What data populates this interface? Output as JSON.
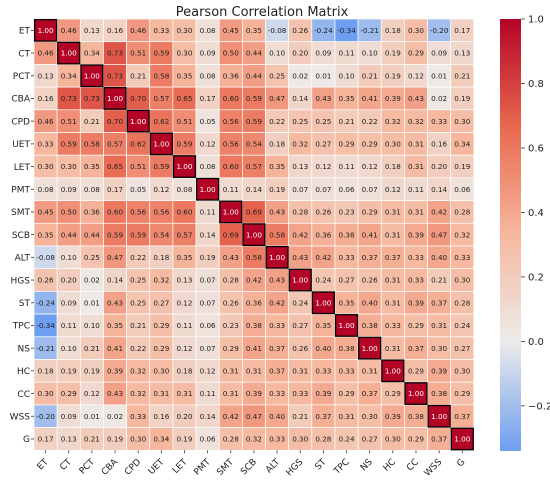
{
  "chart_data": {
    "type": "heatmap",
    "title": "Pearson Correlation Matrix",
    "labels": [
      "ET",
      "CT",
      "PCT",
      "CBA",
      "CPD",
      "UET",
      "LET",
      "PMT",
      "SMT",
      "SCB",
      "ALT",
      "HGS",
      "ST",
      "TPC",
      "NS",
      "HC",
      "CC",
      "WSS",
      "G"
    ],
    "matrix": [
      [
        1.0,
        0.46,
        0.13,
        0.16,
        0.46,
        0.33,
        0.3,
        0.08,
        0.45,
        0.35,
        -0.08,
        0.26,
        -0.24,
        -0.34,
        -0.21,
        0.18,
        0.3,
        -0.2,
        0.17
      ],
      [
        0.46,
        1.0,
        0.34,
        0.73,
        0.51,
        0.59,
        0.3,
        0.09,
        0.5,
        0.44,
        0.1,
        0.2,
        0.09,
        0.11,
        0.1,
        0.19,
        0.29,
        0.09,
        0.13
      ],
      [
        0.13,
        0.34,
        1.0,
        0.73,
        0.21,
        0.58,
        0.35,
        0.08,
        0.36,
        0.44,
        0.25,
        0.02,
        0.01,
        0.1,
        0.21,
        0.19,
        0.12,
        0.01,
        0.21
      ],
      [
        0.16,
        0.73,
        0.73,
        1.0,
        0.7,
        0.57,
        0.65,
        0.17,
        0.6,
        0.59,
        0.47,
        0.14,
        0.43,
        0.35,
        0.41,
        0.39,
        0.43,
        0.02,
        0.19
      ],
      [
        0.46,
        0.51,
        0.21,
        0.7,
        1.0,
        0.62,
        0.51,
        0.05,
        0.56,
        0.59,
        0.22,
        0.25,
        0.25,
        0.21,
        0.22,
        0.32,
        0.32,
        0.33,
        0.3
      ],
      [
        0.33,
        0.59,
        0.58,
        0.57,
        0.62,
        1.0,
        0.59,
        0.12,
        0.56,
        0.54,
        0.18,
        0.32,
        0.27,
        0.29,
        0.29,
        0.3,
        0.31,
        0.16,
        0.34
      ],
      [
        0.3,
        0.3,
        0.35,
        0.65,
        0.51,
        0.59,
        1.0,
        0.08,
        0.6,
        0.57,
        0.35,
        0.13,
        0.12,
        0.11,
        0.12,
        0.18,
        0.31,
        0.2,
        0.19
      ],
      [
        0.08,
        0.09,
        0.08,
        0.17,
        0.05,
        0.12,
        0.08,
        1.0,
        0.11,
        0.14,
        0.19,
        0.07,
        0.07,
        0.06,
        0.07,
        0.12,
        0.11,
        0.14,
        0.06
      ],
      [
        0.45,
        0.5,
        0.36,
        0.6,
        0.56,
        0.56,
        0.6,
        0.11,
        1.0,
        0.69,
        0.43,
        0.28,
        0.26,
        0.23,
        0.29,
        0.31,
        0.31,
        0.42,
        0.28
      ],
      [
        0.35,
        0.44,
        0.44,
        0.59,
        0.59,
        0.54,
        0.57,
        0.14,
        0.69,
        1.0,
        0.58,
        0.42,
        0.36,
        0.38,
        0.41,
        0.31,
        0.39,
        0.47,
        0.32
      ],
      [
        -0.08,
        0.1,
        0.25,
        0.47,
        0.22,
        0.18,
        0.35,
        0.19,
        0.43,
        0.58,
        1.0,
        0.43,
        0.42,
        0.33,
        0.37,
        0.37,
        0.33,
        0.4,
        0.33
      ],
      [
        0.26,
        0.2,
        0.02,
        0.14,
        0.25,
        0.32,
        0.13,
        0.07,
        0.28,
        0.42,
        0.43,
        1.0,
        0.24,
        0.27,
        0.26,
        0.31,
        0.33,
        0.21,
        0.3
      ],
      [
        -0.24,
        0.09,
        0.01,
        0.43,
        0.25,
        0.27,
        0.12,
        0.07,
        0.26,
        0.36,
        0.42,
        0.24,
        1.0,
        0.35,
        0.4,
        0.31,
        0.39,
        0.37,
        0.28
      ],
      [
        -0.34,
        0.11,
        0.1,
        0.35,
        0.21,
        0.29,
        0.11,
        0.06,
        0.23,
        0.38,
        0.33,
        0.27,
        0.35,
        1.0,
        0.38,
        0.33,
        0.29,
        0.31,
        0.24
      ],
      [
        -0.21,
        0.1,
        0.21,
        0.41,
        0.22,
        0.29,
        0.12,
        0.07,
        0.29,
        0.41,
        0.37,
        0.26,
        0.4,
        0.38,
        1.0,
        0.31,
        0.37,
        0.3,
        0.27
      ],
      [
        0.18,
        0.19,
        0.19,
        0.39,
        0.32,
        0.3,
        0.18,
        0.12,
        0.31,
        0.31,
        0.37,
        0.31,
        0.33,
        0.33,
        0.31,
        1.0,
        0.29,
        0.39,
        0.3
      ],
      [
        0.3,
        0.29,
        0.12,
        0.43,
        0.32,
        0.31,
        0.31,
        0.11,
        0.31,
        0.39,
        0.33,
        0.33,
        0.39,
        0.29,
        0.37,
        0.29,
        1.0,
        0.38,
        0.29
      ],
      [
        -0.2,
        0.09,
        0.01,
        0.02,
        0.33,
        0.16,
        0.2,
        0.14,
        0.42,
        0.47,
        0.4,
        0.21,
        0.37,
        0.31,
        0.3,
        0.39,
        0.38,
        1.0,
        0.37
      ],
      [
        0.17,
        0.13,
        0.21,
        0.19,
        0.3,
        0.34,
        0.19,
        0.06,
        0.28,
        0.32,
        0.33,
        0.3,
        0.28,
        0.24,
        0.27,
        0.3,
        0.29,
        0.37,
        1.0
      ]
    ],
    "colorbar": {
      "ticks": [
        1.0,
        0.8,
        0.6,
        0.4,
        0.2,
        0.0,
        -0.2
      ],
      "vmin": -0.34,
      "vmax": 1.0,
      "colors": {
        "low": "#6e9ef0",
        "mid": "#ecebe9",
        "high": "#b40426"
      }
    },
    "diagonal_highlight": "#000000",
    "grid": true
  }
}
